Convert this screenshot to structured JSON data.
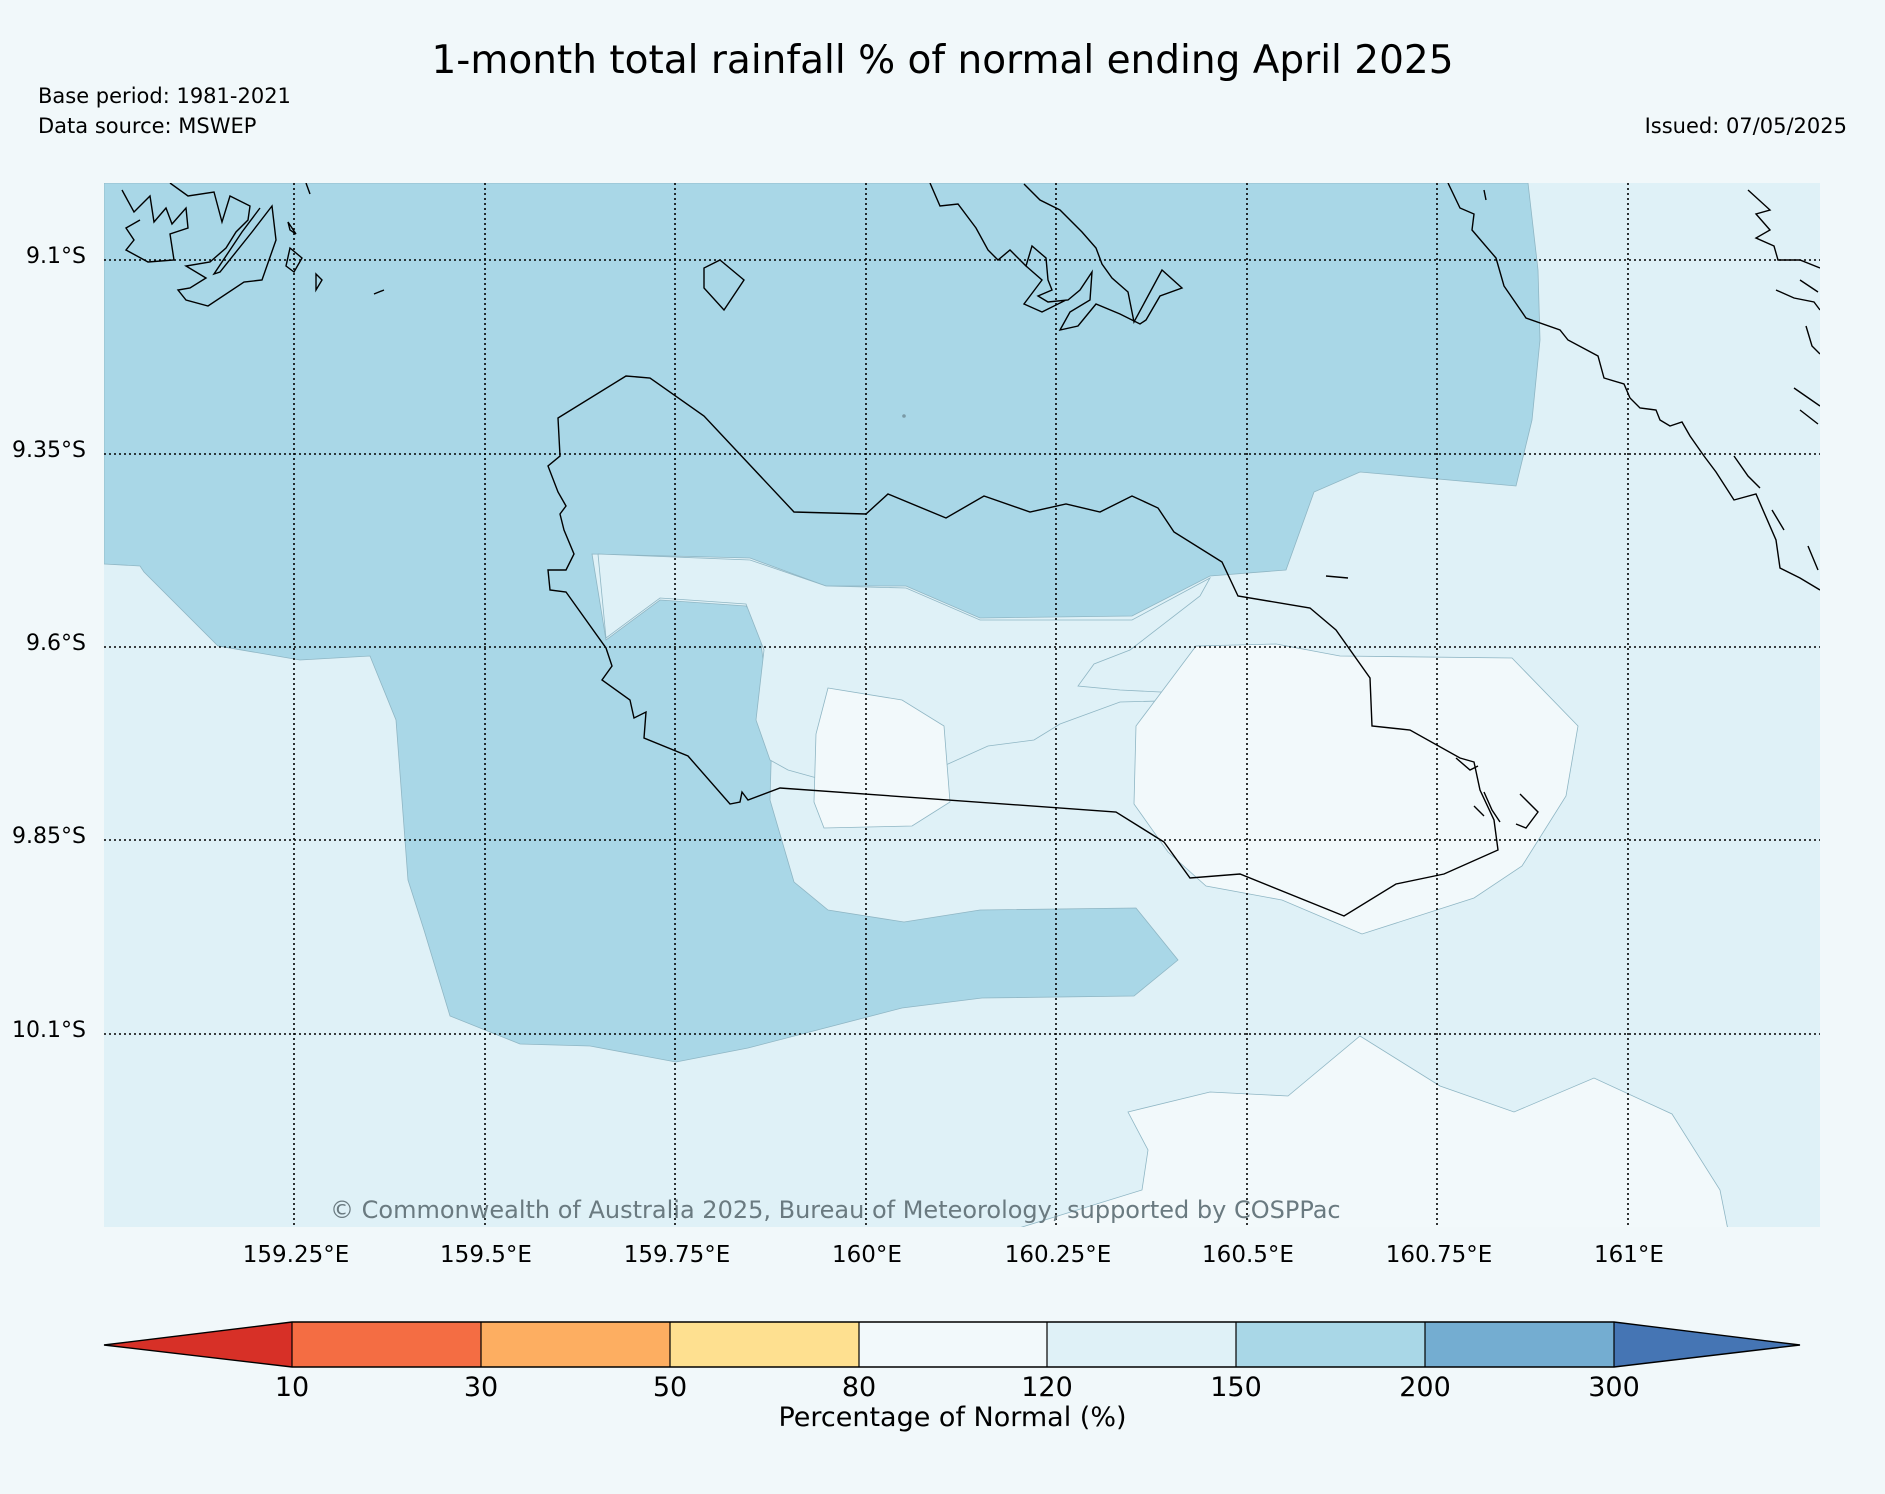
{
  "header": {
    "title": "1-month total rainfall % of normal ending April 2025",
    "base_period": "Base period: 1981-2021",
    "data_source": "Data source: MSWEP",
    "issued": "Issued: 07/05/2025"
  },
  "map": {
    "latitude_labels": [
      "9.1°S",
      "9.35°S",
      "9.6°S",
      "9.85°S",
      "10.1°S"
    ],
    "longitude_labels": [
      "159.25°E",
      "159.5°E",
      "159.75°E",
      "160°E",
      "160.25°E",
      "160.5°E",
      "160.75°E",
      "161°E"
    ],
    "copyright": "© Commonwealth of Australia 2025, Bureau of Meteorology, supported by COSPPac",
    "category_colors": {
      "120-150": "#dff1f7",
      "150-200": "#a9d7e7",
      "80-120": "#f2f9fb"
    }
  },
  "colorbar": {
    "label": "Percentage of Normal (%)",
    "ticks": [
      "10",
      "30",
      "50",
      "80",
      "120",
      "150",
      "200",
      "300"
    ],
    "colors": [
      "#d73027",
      "#f46d43",
      "#fdae61",
      "#fee090",
      "#f2f9fb",
      "#dff1f7",
      "#a9d7e7",
      "#74add1",
      "#4575b4"
    ]
  }
}
